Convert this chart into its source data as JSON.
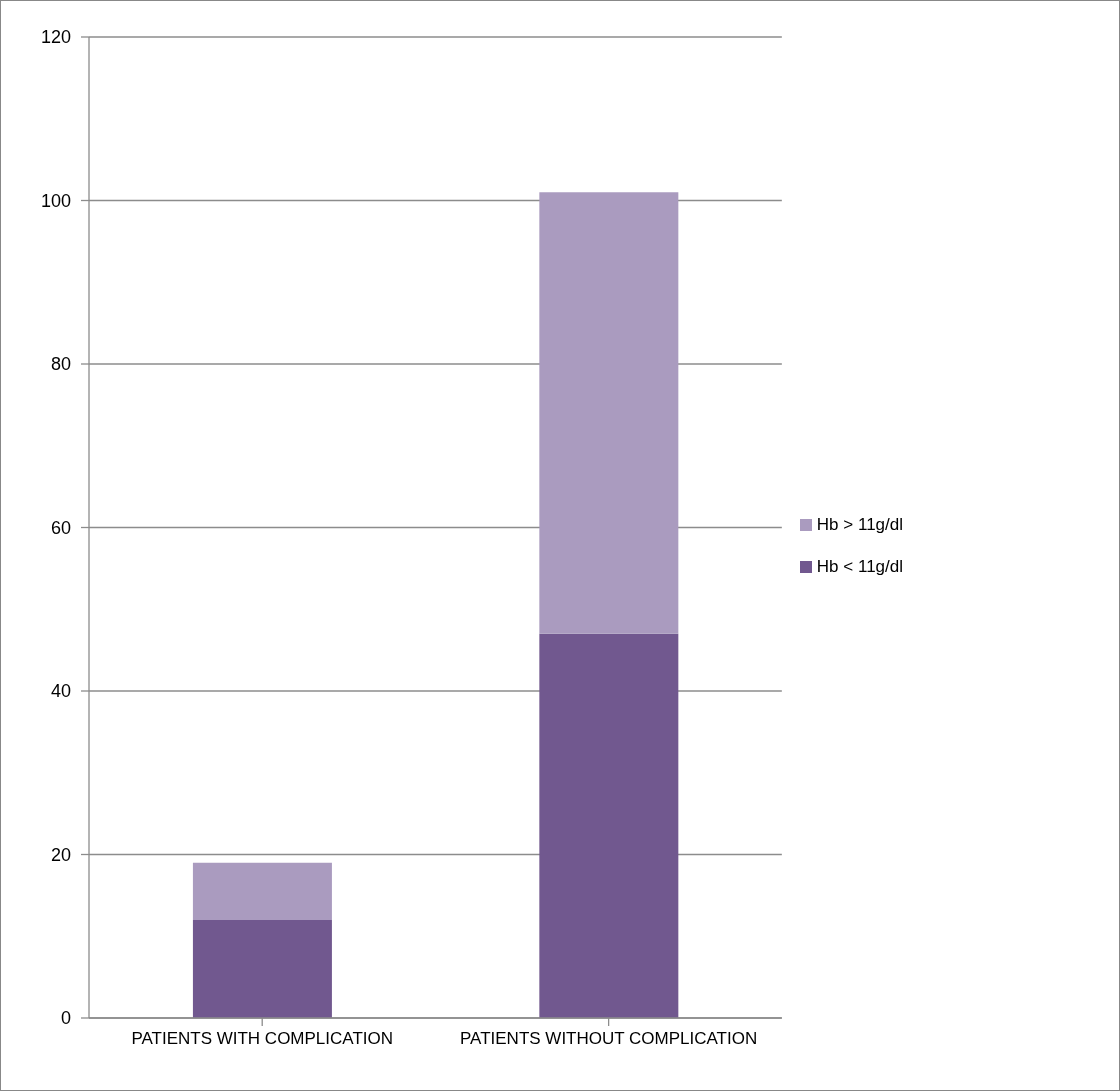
{
  "chart_data": {
    "type": "bar",
    "stacked": true,
    "categories": [
      "PATIENTS WITH COMPLICATION",
      "PATIENTS WITHOUT COMPLICATION"
    ],
    "series": [
      {
        "name": "Hb < 11g/dl",
        "color": "#71588f",
        "values": [
          12,
          47
        ]
      },
      {
        "name": "Hb > 11g/dl",
        "color": "#aa9bbf",
        "values": [
          7,
          54
        ]
      }
    ],
    "ylim": [
      0,
      120
    ],
    "yticks": [
      0,
      20,
      40,
      60,
      80,
      100,
      120
    ],
    "grid": "y",
    "legend": "right"
  }
}
